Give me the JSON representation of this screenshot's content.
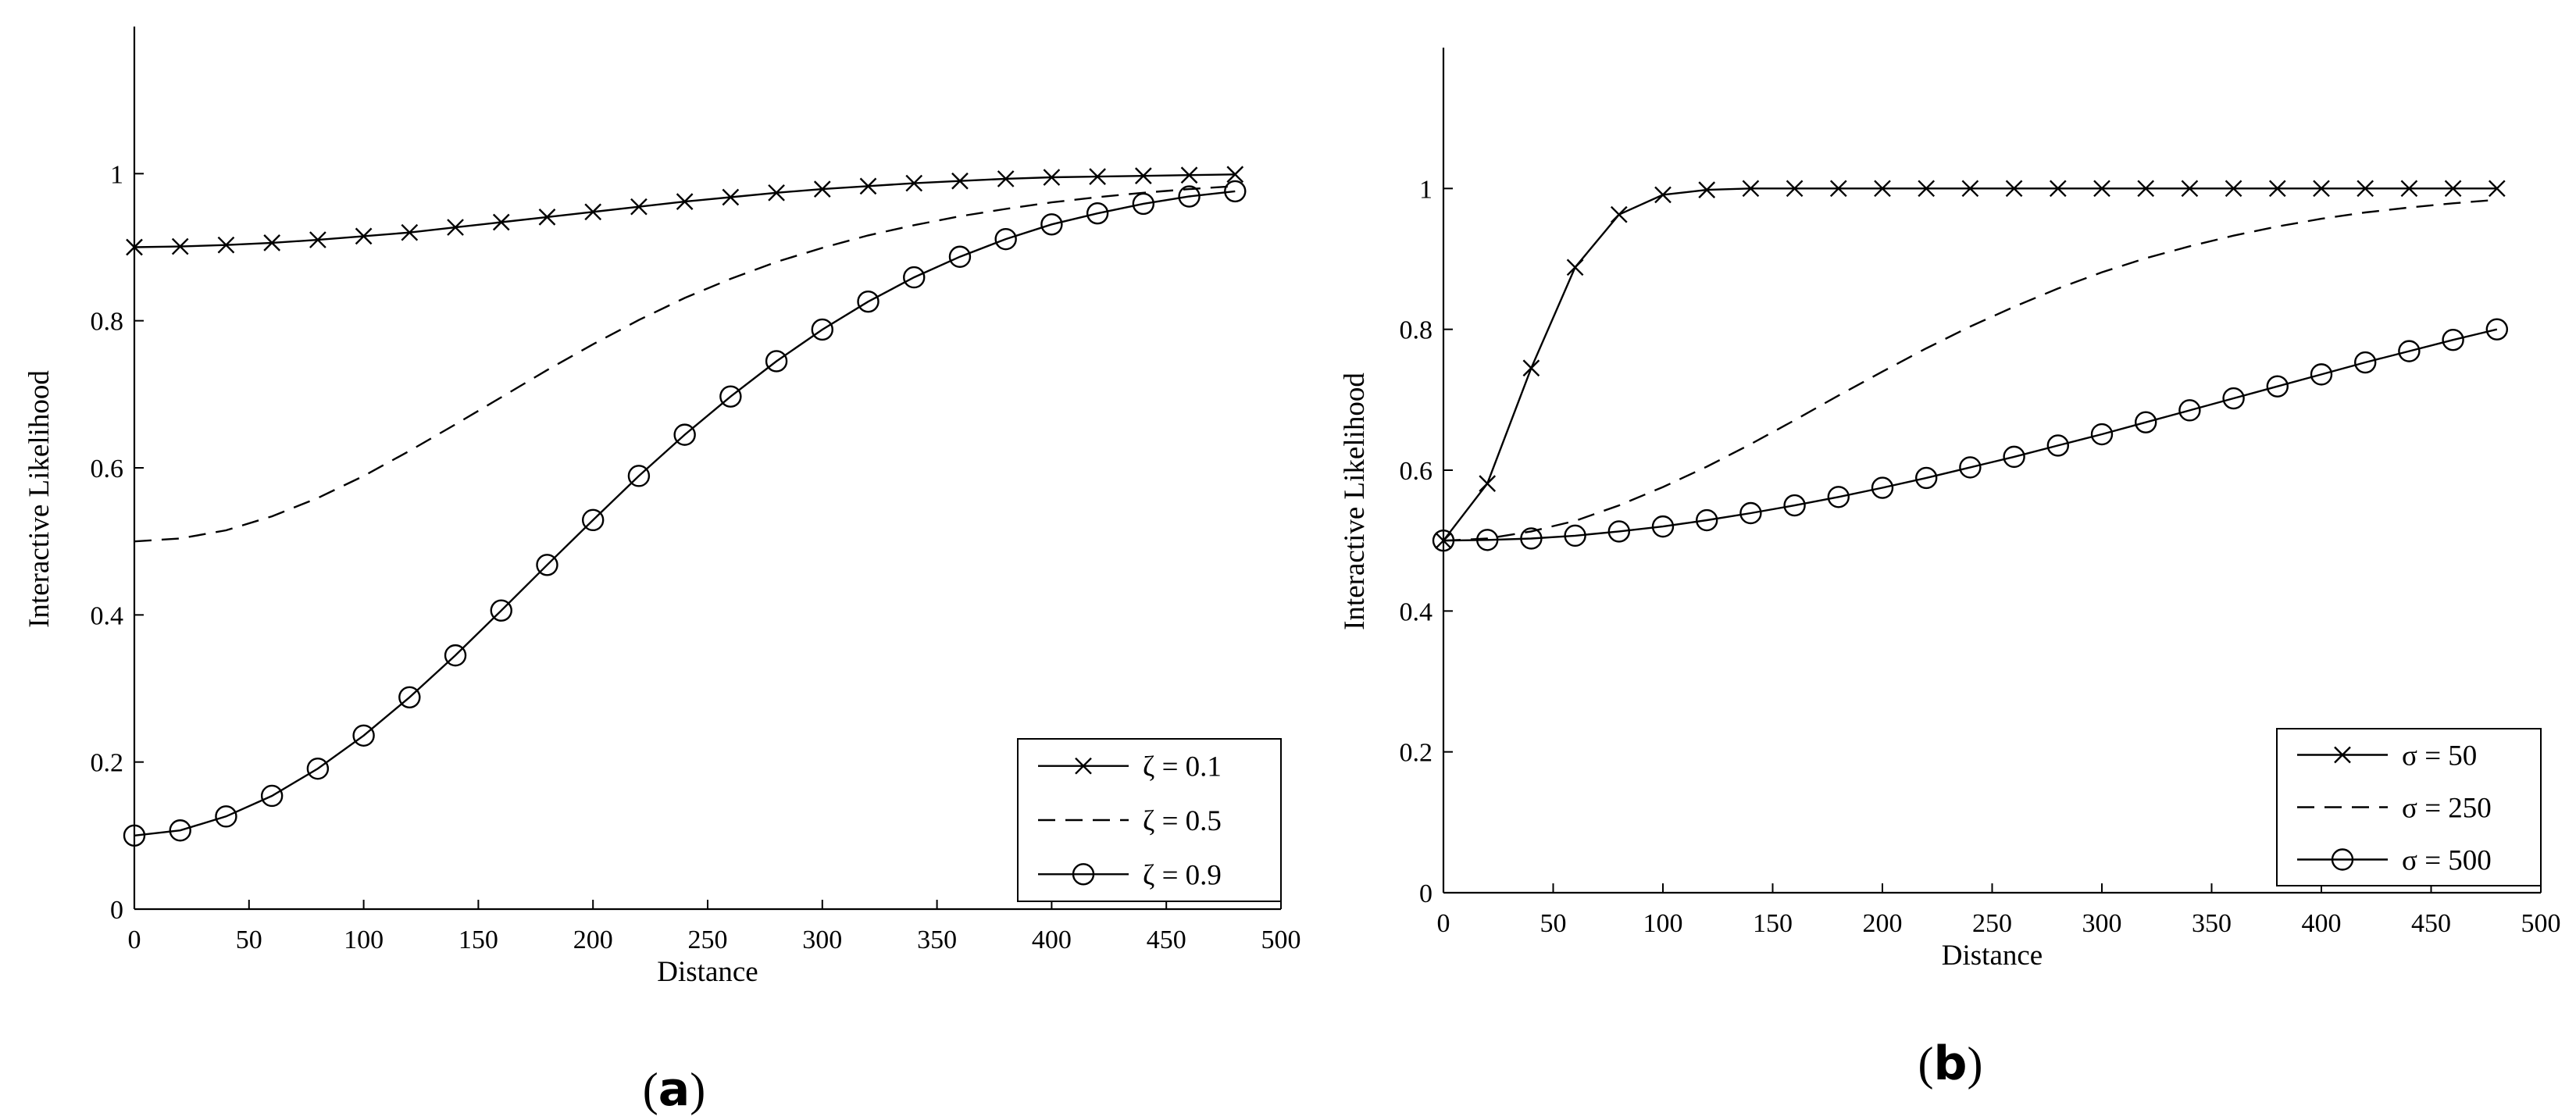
{
  "chart_data": [
    {
      "type": "line",
      "panel_label": "a",
      "xlabel": "Distance",
      "ylabel": "Interactive Likelihood",
      "xlim": [
        0,
        500
      ],
      "ylim": [
        0,
        1.2
      ],
      "xticks": [
        0,
        50,
        100,
        150,
        200,
        250,
        300,
        350,
        400,
        450,
        500
      ],
      "yticks": [
        0,
        0.2,
        0.4,
        0.6,
        0.8,
        1
      ],
      "grid": false,
      "legend_position": "bottom-right",
      "x": [
        0,
        20,
        40,
        60,
        80,
        100,
        120,
        140,
        160,
        180,
        200,
        220,
        240,
        260,
        280,
        300,
        320,
        340,
        360,
        380,
        400,
        420,
        440,
        460,
        480
      ],
      "series": [
        {
          "name": "ζ = 0.1",
          "marker": "x",
          "linestyle": "solid",
          "values": [
            0.9,
            0.901,
            0.903,
            0.906,
            0.91,
            0.915,
            0.92,
            0.927,
            0.934,
            0.941,
            0.948,
            0.955,
            0.962,
            0.968,
            0.974,
            0.979,
            0.983,
            0.987,
            0.99,
            0.993,
            0.995,
            0.996,
            0.997,
            0.998,
            0.999
          ]
        },
        {
          "name": "ζ = 0.5",
          "marker": "none",
          "linestyle": "dashed",
          "values": [
            0.5,
            0.504,
            0.515,
            0.534,
            0.559,
            0.589,
            0.623,
            0.659,
            0.696,
            0.733,
            0.768,
            0.801,
            0.831,
            0.857,
            0.88,
            0.899,
            0.916,
            0.93,
            0.942,
            0.952,
            0.961,
            0.968,
            0.974,
            0.979,
            0.983
          ]
        },
        {
          "name": "ζ = 0.9",
          "marker": "o",
          "linestyle": "solid",
          "values": [
            0.1,
            0.107,
            0.126,
            0.154,
            0.191,
            0.236,
            0.288,
            0.345,
            0.406,
            0.468,
            0.529,
            0.589,
            0.645,
            0.697,
            0.745,
            0.788,
            0.826,
            0.859,
            0.887,
            0.911,
            0.931,
            0.946,
            0.959,
            0.969,
            0.976
          ]
        }
      ]
    },
    {
      "type": "line",
      "panel_label": "b",
      "xlabel": "Distance",
      "ylabel": "Interactive Likelihood",
      "xlim": [
        0,
        500
      ],
      "ylim": [
        0,
        1.2
      ],
      "xticks": [
        0,
        50,
        100,
        150,
        200,
        250,
        300,
        350,
        400,
        450,
        500
      ],
      "yticks": [
        0,
        0.2,
        0.4,
        0.6,
        0.8,
        1
      ],
      "grid": false,
      "legend_position": "bottom-right",
      "x": [
        0,
        20,
        40,
        60,
        80,
        100,
        120,
        140,
        160,
        180,
        200,
        220,
        240,
        260,
        280,
        300,
        320,
        340,
        360,
        380,
        400,
        420,
        440,
        460,
        480
      ],
      "series": [
        {
          "name": "σ = 50",
          "marker": "x",
          "linestyle": "solid",
          "values": [
            0.5,
            0.581,
            0.745,
            0.888,
            0.963,
            0.991,
            0.998,
            1.0,
            1.0,
            1.0,
            1.0,
            1.0,
            1.0,
            1.0,
            1.0,
            1.0,
            1.0,
            1.0,
            1.0,
            1.0,
            1.0,
            1.0,
            1.0,
            1.0,
            1.0
          ]
        },
        {
          "name": "σ = 250",
          "marker": "none",
          "linestyle": "dashed",
          "values": [
            0.5,
            0.503,
            0.513,
            0.528,
            0.55,
            0.576,
            0.605,
            0.637,
            0.671,
            0.706,
            0.74,
            0.773,
            0.804,
            0.832,
            0.858,
            0.881,
            0.901,
            0.918,
            0.933,
            0.946,
            0.957,
            0.966,
            0.973,
            0.979,
            0.984
          ]
        },
        {
          "name": "σ = 500",
          "marker": "o",
          "linestyle": "solid",
          "values": [
            0.5,
            0.501,
            0.503,
            0.507,
            0.513,
            0.52,
            0.529,
            0.539,
            0.55,
            0.562,
            0.575,
            0.589,
            0.604,
            0.619,
            0.635,
            0.651,
            0.668,
            0.685,
            0.702,
            0.719,
            0.736,
            0.753,
            0.769,
            0.785,
            0.8
          ]
        }
      ]
    }
  ]
}
